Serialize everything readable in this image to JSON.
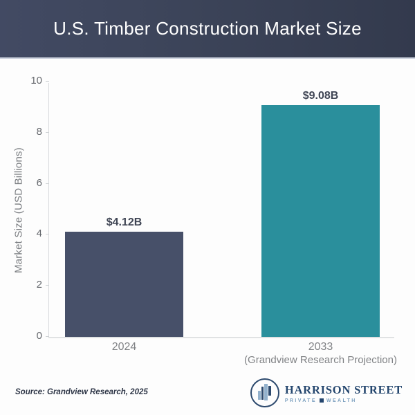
{
  "header": {
    "title": "U.S. Timber Construction Market Size"
  },
  "chart_data": {
    "type": "bar",
    "title": "U.S. Timber Construction Market Size",
    "categories": [
      "2024",
      "2033"
    ],
    "category_sublabels": [
      "",
      "(Grandview Research Projection)"
    ],
    "values": [
      4.12,
      9.08
    ],
    "value_labels": [
      "$4.12B",
      "$9.08B"
    ],
    "bar_colors": [
      "#475069",
      "#2a8f9c"
    ],
    "xlabel": "",
    "ylabel": "Market Size (USD Billions)",
    "ylim": [
      0,
      10
    ],
    "yticks": [
      0,
      2,
      4,
      6,
      8,
      10
    ],
    "grid": false,
    "legend": "none"
  },
  "footer": {
    "source": "Source: Grandview Research, 2025",
    "logo": {
      "name": "HARRISON STREET",
      "sub_left": "PRIVATE",
      "sub_right": "WEALTH",
      "brand_navy": "#24466e",
      "brand_lightblue": "#93b1cc"
    }
  },
  "colors": {
    "header_gradient_left": "#424a63",
    "header_gradient_right": "#333a4d",
    "bar_2024": "#475069",
    "bar_2033": "#2a8f9c",
    "axis_text": "#66696e",
    "value_label_text": "#3f4554",
    "background": "#fdfdfd"
  }
}
